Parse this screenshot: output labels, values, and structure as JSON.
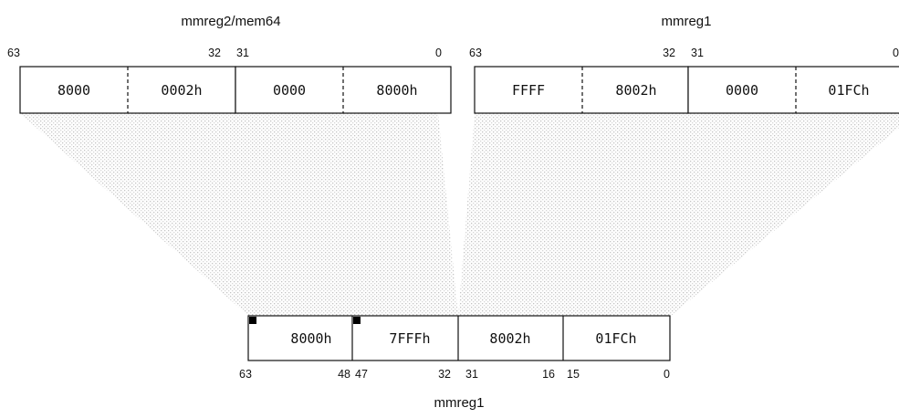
{
  "top_left": {
    "title": "mmreg2/mem64",
    "bit_labels": [
      "63",
      "32",
      "31",
      "0"
    ],
    "cells": [
      "8000",
      "0002h",
      "0000",
      "8000h"
    ]
  },
  "top_right": {
    "title": "mmreg1",
    "bit_labels": [
      "63",
      "32",
      "31",
      "0"
    ],
    "cells": [
      "FFFF",
      "8002h",
      "0000",
      "01FCh"
    ]
  },
  "result": {
    "title": "mmreg1",
    "bit_labels": [
      "63",
      "48",
      "47",
      "32",
      "31",
      "16",
      "15",
      "0"
    ],
    "cells": [
      "8000h",
      "7FFFh",
      "8002h",
      "01FCh"
    ]
  },
  "colors": {
    "stroke": "#111111",
    "shade": "#dcdcdc",
    "sign_marker": "#000000"
  }
}
